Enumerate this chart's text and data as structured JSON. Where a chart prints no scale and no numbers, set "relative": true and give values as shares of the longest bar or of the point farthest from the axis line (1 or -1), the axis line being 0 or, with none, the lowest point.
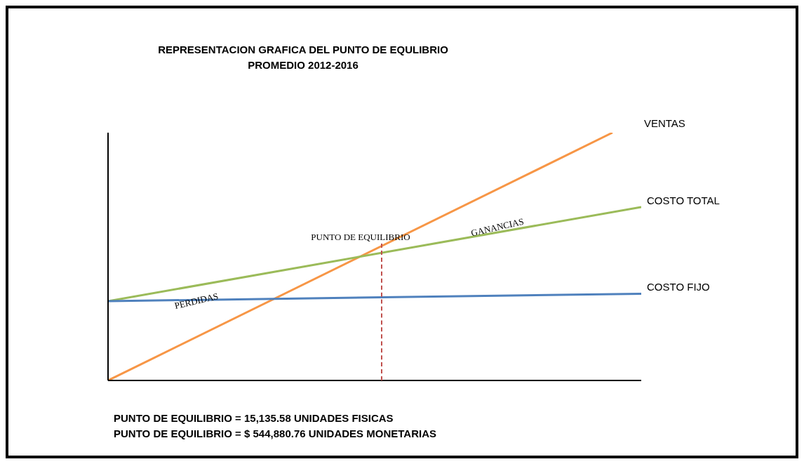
{
  "chart_data": {
    "type": "line",
    "title": "REPRESENTACION GRAFICA DEL PUNTO DE EQULIBRIO",
    "subtitle": "PROMEDIO 2012-2016",
    "relative": true,
    "marker": "none",
    "categories": [
      null,
      null,
      null,
      null,
      null,
      null,
      null,
      null,
      null,
      null,
      null,
      null,
      null,
      null,
      null,
      null,
      null,
      null,
      null,
      null,
      null,
      null,
      null,
      null,
      null,
      null,
      null,
      null,
      null,
      null,
      null,
      null,
      null,
      null,
      null,
      null,
      null,
      null
    ],
    "series": [
      {
        "name": "VENTAS",
        "color": "#f79646",
        "values": [
          0,
          null,
          null,
          null,
          null,
          null,
          null,
          null,
          null,
          null,
          null,
          null,
          null,
          null,
          null,
          null,
          null,
          null,
          null,
          null,
          null,
          null,
          null,
          null,
          null,
          null,
          null,
          null,
          null,
          null,
          null,
          null,
          null,
          null,
          null,
          1.0,
          null,
          null
        ]
      },
      {
        "name": "COSTO TOTAL",
        "color": "#9bbb59",
        "values": [
          0.32,
          null,
          null,
          null,
          null,
          null,
          null,
          null,
          null,
          null,
          null,
          null,
          null,
          null,
          null,
          null,
          null,
          null,
          null,
          null,
          null,
          null,
          null,
          null,
          null,
          null,
          null,
          null,
          null,
          null,
          null,
          null,
          null,
          null,
          null,
          null,
          null,
          0.7
        ]
      },
      {
        "name": "COSTO FIJO",
        "color": "#4f81bd",
        "values": [
          0.32,
          null,
          null,
          null,
          null,
          null,
          null,
          null,
          null,
          null,
          null,
          null,
          null,
          null,
          null,
          null,
          null,
          null,
          null,
          null,
          null,
          null,
          null,
          null,
          null,
          null,
          null,
          null,
          null,
          null,
          null,
          null,
          null,
          null,
          null,
          null,
          null,
          0.35
        ]
      }
    ],
    "annotations": [
      "PUNTO DE EQUILIBRIO",
      "PERDIDAS",
      "GANANCIAS",
      "PUNTO DE EQUILIBRIO = 15,135.58 UNIDADES FISICAS",
      "PUNTO DE EQUILIBRIO = $ 544,880.76 UNIDADES MONETARIAS"
    ]
  }
}
